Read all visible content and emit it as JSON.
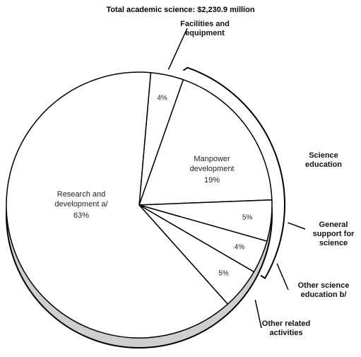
{
  "chart_data": {
    "type": "pie",
    "title": "Total academic science: $2,230.9 million",
    "categories": [
      "Facilities and equipment",
      "Manpower development",
      "General support for science",
      "Other science education b/",
      "Other related activities",
      "Research and development a/"
    ],
    "values": [
      4,
      19,
      5,
      4,
      5,
      63
    ],
    "value_labels": [
      "4%",
      "19%",
      "5%",
      "4%",
      "5%",
      "63%"
    ],
    "annotations": [
      "Science education"
    ]
  }
}
